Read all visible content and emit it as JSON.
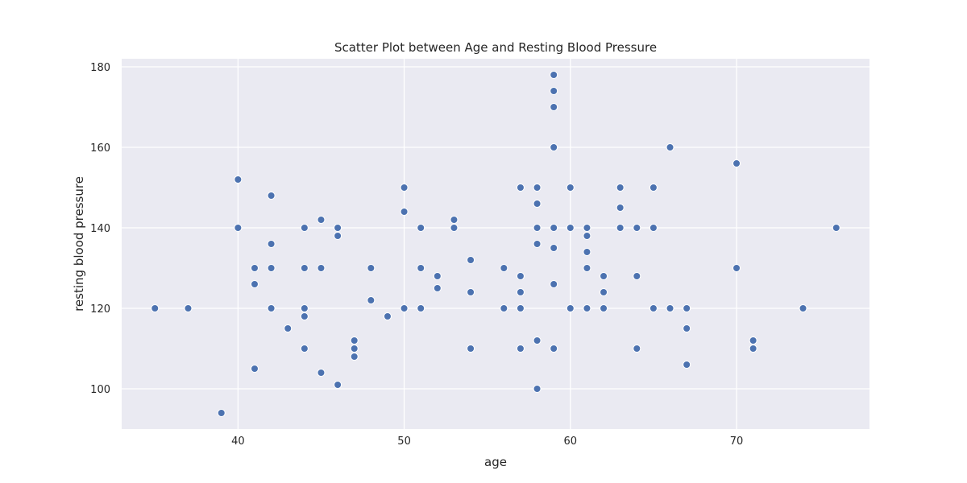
{
  "chart_data": {
    "type": "scatter",
    "title": "Scatter Plot between Age and Resting Blood Pressure",
    "xlabel": "age",
    "ylabel": "resting blood pressure",
    "xlim": [
      33,
      78
    ],
    "ylim": [
      90,
      182
    ],
    "xticks": [
      40,
      50,
      60,
      70
    ],
    "yticks": [
      100,
      120,
      140,
      160,
      180
    ],
    "grid": true,
    "point_color": "#4c72b0",
    "background_color": "#eaeaf2",
    "points": [
      {
        "x": 35,
        "y": 120
      },
      {
        "x": 37,
        "y": 120
      },
      {
        "x": 39,
        "y": 94
      },
      {
        "x": 40,
        "y": 152
      },
      {
        "x": 40,
        "y": 140
      },
      {
        "x": 41,
        "y": 130
      },
      {
        "x": 41,
        "y": 126
      },
      {
        "x": 41,
        "y": 105
      },
      {
        "x": 42,
        "y": 148
      },
      {
        "x": 42,
        "y": 136
      },
      {
        "x": 42,
        "y": 130
      },
      {
        "x": 42,
        "y": 120
      },
      {
        "x": 43,
        "y": 115
      },
      {
        "x": 44,
        "y": 140
      },
      {
        "x": 44,
        "y": 130
      },
      {
        "x": 44,
        "y": 120
      },
      {
        "x": 44,
        "y": 118
      },
      {
        "x": 44,
        "y": 110
      },
      {
        "x": 45,
        "y": 142
      },
      {
        "x": 45,
        "y": 130
      },
      {
        "x": 45,
        "y": 104
      },
      {
        "x": 46,
        "y": 140
      },
      {
        "x": 46,
        "y": 138
      },
      {
        "x": 46,
        "y": 101
      },
      {
        "x": 47,
        "y": 112
      },
      {
        "x": 47,
        "y": 110
      },
      {
        "x": 47,
        "y": 108
      },
      {
        "x": 48,
        "y": 130
      },
      {
        "x": 48,
        "y": 122
      },
      {
        "x": 49,
        "y": 118
      },
      {
        "x": 50,
        "y": 150
      },
      {
        "x": 50,
        "y": 144
      },
      {
        "x": 50,
        "y": 120
      },
      {
        "x": 51,
        "y": 140
      },
      {
        "x": 51,
        "y": 130
      },
      {
        "x": 51,
        "y": 120
      },
      {
        "x": 52,
        "y": 128
      },
      {
        "x": 52,
        "y": 125
      },
      {
        "x": 53,
        "y": 142
      },
      {
        "x": 53,
        "y": 140
      },
      {
        "x": 54,
        "y": 132
      },
      {
        "x": 54,
        "y": 124
      },
      {
        "x": 54,
        "y": 110
      },
      {
        "x": 56,
        "y": 130
      },
      {
        "x": 56,
        "y": 120
      },
      {
        "x": 57,
        "y": 150
      },
      {
        "x": 57,
        "y": 128
      },
      {
        "x": 57,
        "y": 124
      },
      {
        "x": 57,
        "y": 120
      },
      {
        "x": 57,
        "y": 110
      },
      {
        "x": 58,
        "y": 150
      },
      {
        "x": 58,
        "y": 146
      },
      {
        "x": 58,
        "y": 140
      },
      {
        "x": 58,
        "y": 136
      },
      {
        "x": 58,
        "y": 112
      },
      {
        "x": 58,
        "y": 100
      },
      {
        "x": 59,
        "y": 178
      },
      {
        "x": 59,
        "y": 174
      },
      {
        "x": 59,
        "y": 170
      },
      {
        "x": 59,
        "y": 160
      },
      {
        "x": 59,
        "y": 140
      },
      {
        "x": 59,
        "y": 135
      },
      {
        "x": 59,
        "y": 126
      },
      {
        "x": 59,
        "y": 110
      },
      {
        "x": 60,
        "y": 150
      },
      {
        "x": 60,
        "y": 140
      },
      {
        "x": 60,
        "y": 120
      },
      {
        "x": 61,
        "y": 140
      },
      {
        "x": 61,
        "y": 138
      },
      {
        "x": 61,
        "y": 134
      },
      {
        "x": 61,
        "y": 130
      },
      {
        "x": 61,
        "y": 120
      },
      {
        "x": 62,
        "y": 128
      },
      {
        "x": 62,
        "y": 124
      },
      {
        "x": 62,
        "y": 120
      },
      {
        "x": 63,
        "y": 150
      },
      {
        "x": 63,
        "y": 145
      },
      {
        "x": 63,
        "y": 140
      },
      {
        "x": 64,
        "y": 140
      },
      {
        "x": 64,
        "y": 128
      },
      {
        "x": 64,
        "y": 110
      },
      {
        "x": 65,
        "y": 150
      },
      {
        "x": 65,
        "y": 140
      },
      {
        "x": 65,
        "y": 120
      },
      {
        "x": 66,
        "y": 160
      },
      {
        "x": 66,
        "y": 120
      },
      {
        "x": 67,
        "y": 120
      },
      {
        "x": 67,
        "y": 115
      },
      {
        "x": 67,
        "y": 106
      },
      {
        "x": 70,
        "y": 156
      },
      {
        "x": 70,
        "y": 130
      },
      {
        "x": 71,
        "y": 112
      },
      {
        "x": 71,
        "y": 110
      },
      {
        "x": 74,
        "y": 120
      },
      {
        "x": 76,
        "y": 140
      }
    ]
  }
}
